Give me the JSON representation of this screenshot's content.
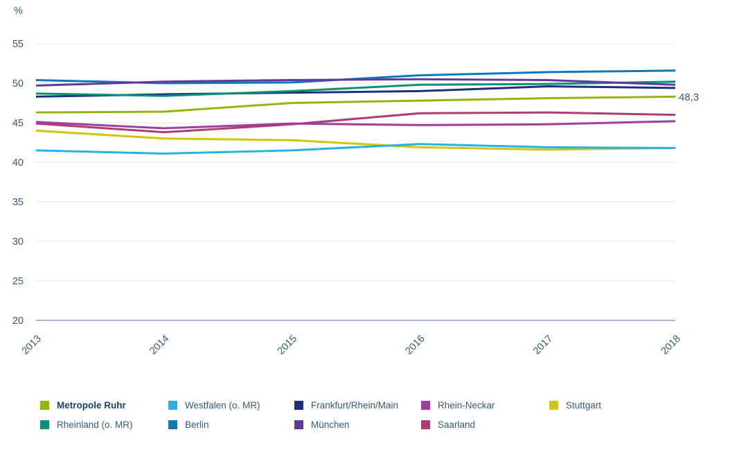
{
  "chart": {
    "unit_label": "%",
    "annotation": {
      "text": "48,3",
      "series": "Metropole Ruhr"
    }
  },
  "chart_data": {
    "type": "line",
    "title": "",
    "xlabel": "",
    "ylabel": "%",
    "x": [
      2013,
      2014,
      2015,
      2016,
      2017,
      2018
    ],
    "x_tick_labels": [
      "2013",
      "2014",
      "2015",
      "2016",
      "2017",
      "2018"
    ],
    "y_ticks": [
      55,
      50,
      45,
      40,
      35,
      30,
      25,
      20
    ],
    "ylim": [
      20,
      55
    ],
    "grid": "horizontal",
    "legend_position": "bottom",
    "series": [
      {
        "name": "Metropole Ruhr",
        "color": "#8cb80f",
        "values": [
          46.3,
          46.4,
          47.5,
          47.8,
          48.1,
          48.3
        ],
        "end_label": "48,3",
        "bold_legend": true,
        "z": 9
      },
      {
        "name": "Westfalen (o. MR)",
        "color": "#29b1e6",
        "values": [
          41.5,
          41.1,
          41.5,
          42.3,
          41.9,
          41.8
        ],
        "z": 2
      },
      {
        "name": "Frankfurt/Rhein/Main",
        "color": "#202f7c",
        "values": [
          48.3,
          48.6,
          48.8,
          49.0,
          49.6,
          49.4
        ],
        "z": 5
      },
      {
        "name": "Rhein-Neckar",
        "color": "#9c3f9f",
        "values": [
          45.1,
          44.3,
          44.9,
          44.7,
          44.8,
          45.2
        ],
        "z": 4
      },
      {
        "name": "Stuttgart",
        "color": "#d2c407",
        "values": [
          44.0,
          43.0,
          42.8,
          41.9,
          41.6,
          41.8
        ],
        "z": 1
      },
      {
        "name": "Rheinland (o. MR)",
        "color": "#0a9178",
        "values": [
          48.7,
          48.4,
          49.0,
          49.8,
          49.9,
          50.2
        ],
        "z": 6
      },
      {
        "name": "Berlin",
        "color": "#0c78bf",
        "values": [
          50.4,
          50.0,
          50.1,
          51.0,
          51.4,
          51.6
        ],
        "z": 7
      },
      {
        "name": "München",
        "color": "#5f3a9b",
        "values": [
          49.7,
          50.2,
          50.4,
          50.5,
          50.4,
          49.8
        ],
        "z": 8
      },
      {
        "name": "Saarland",
        "color": "#b03a72",
        "values": [
          44.9,
          43.8,
          44.8,
          46.2,
          46.3,
          46.0
        ],
        "z": 3
      }
    ]
  },
  "colors": {
    "axis_text": "#33597e",
    "gridline": "#e7e7ea",
    "baseline": "#a6bacd",
    "background": "#ffffff"
  }
}
